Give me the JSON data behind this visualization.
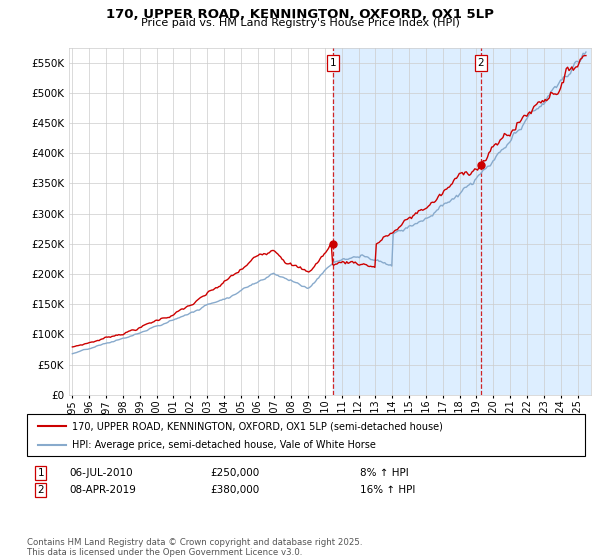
{
  "title1": "170, UPPER ROAD, KENNINGTON, OXFORD, OX1 5LP",
  "title2": "Price paid vs. HM Land Registry's House Price Index (HPI)",
  "ytick_labels": [
    "£0",
    "£50K",
    "£100K",
    "£150K",
    "£200K",
    "£250K",
    "£300K",
    "£350K",
    "£400K",
    "£450K",
    "£500K",
    "£550K"
  ],
  "ytick_values": [
    0,
    50000,
    100000,
    150000,
    200000,
    250000,
    300000,
    350000,
    400000,
    450000,
    500000,
    550000
  ],
  "ylim": [
    0,
    575000
  ],
  "xlim_start": 1994.8,
  "xlim_end": 2025.8,
  "red_line_color": "#cc0000",
  "blue_line_color": "#88aacc",
  "shade_color": "#ddeeff",
  "dashed_line_color": "#cc0000",
  "grid_color": "#cccccc",
  "background_color": "#ffffff",
  "marker1_x": 2010.5,
  "marker1_y": 250000,
  "marker2_x": 2019.25,
  "marker2_y": 380000,
  "label1_date": "06-JUL-2010",
  "label1_price": "£250,000",
  "label1_hpi": "8% ↑ HPI",
  "label2_date": "08-APR-2019",
  "label2_price": "£380,000",
  "label2_hpi": "16% ↑ HPI",
  "legend_red": "170, UPPER ROAD, KENNINGTON, OXFORD, OX1 5LP (semi-detached house)",
  "legend_blue": "HPI: Average price, semi-detached house, Vale of White Horse",
  "footnote": "Contains HM Land Registry data © Crown copyright and database right 2025.\nThis data is licensed under the Open Government Licence v3.0."
}
